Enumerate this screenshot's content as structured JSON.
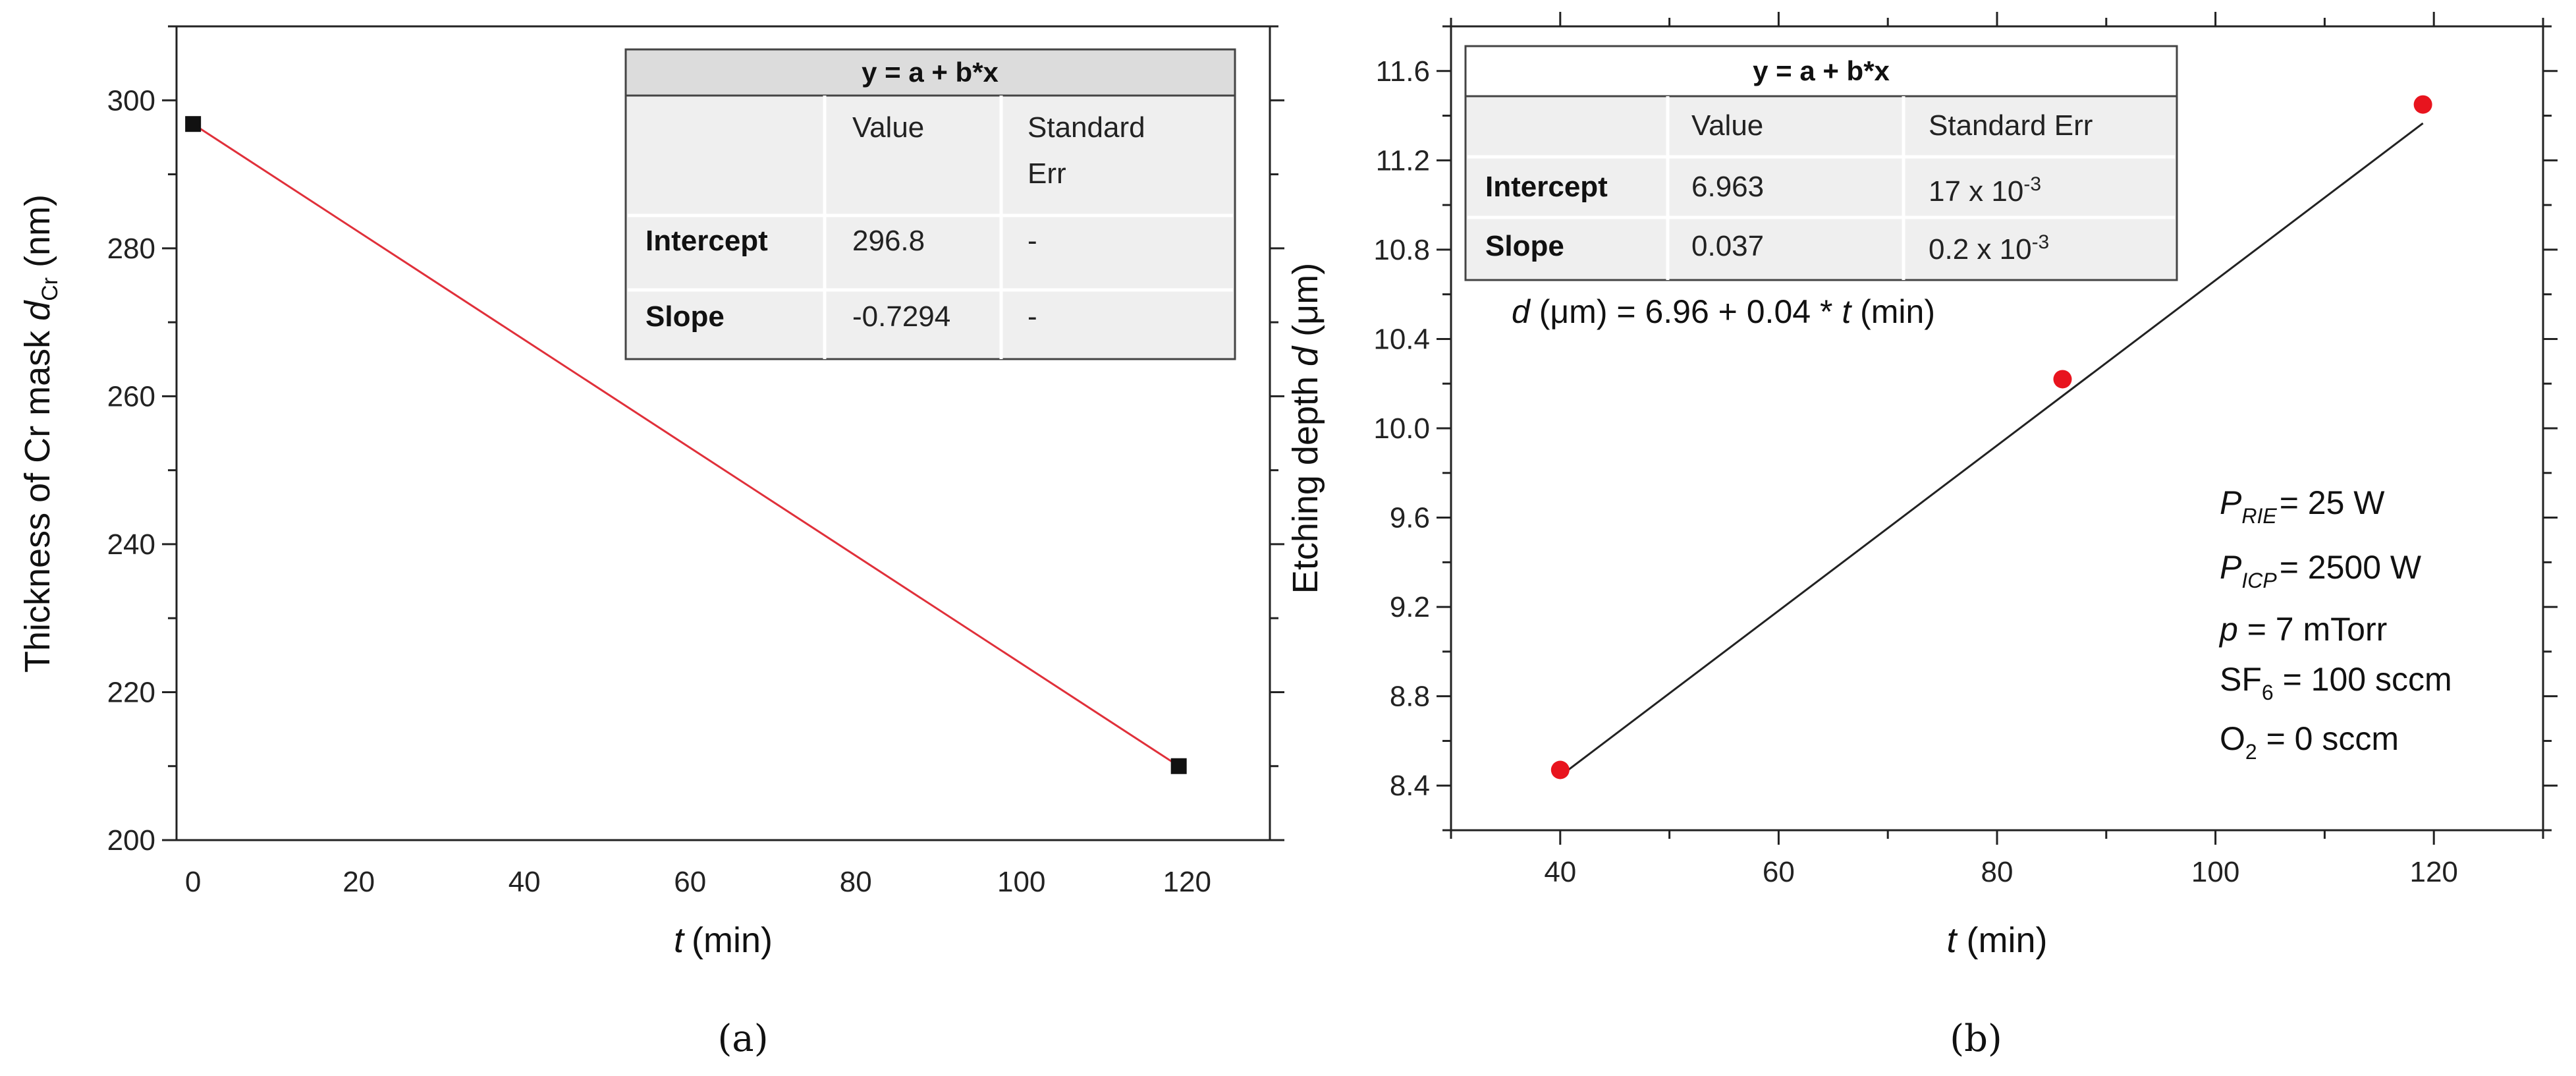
{
  "chart_data": [
    {
      "type": "line",
      "panel_label": "(a)",
      "xlabel_var": "t",
      "xlabel_unit": "(min)",
      "ylabel_main": "Thickness of Cr mask ",
      "ylabel_var": "d",
      "ylabel_sub": "Cr",
      "ylabel_unit": " (nm)",
      "xlim": [
        -2,
        130
      ],
      "ylim": [
        200,
        310
      ],
      "xticks": [
        0,
        20,
        40,
        60,
        80,
        100,
        120
      ],
      "yticks": [
        200,
        220,
        240,
        260,
        280,
        300
      ],
      "series": [
        {
          "name": "Cr mask thickness",
          "x": [
            0,
            119
          ],
          "y": [
            296.8,
            210
          ],
          "marker": "square",
          "marker_color": "#111111"
        }
      ],
      "fit": {
        "intercept": 296.8,
        "slope": -0.7294,
        "color": "#e0303a"
      },
      "table": {
        "title": "y = a + b*x",
        "headers": [
          "",
          "Value",
          "Standard",
          "Err"
        ],
        "rows": [
          {
            "label": "Intercept",
            "value": "296.8",
            "err": "-"
          },
          {
            "label": "Slope",
            "value": "-0.7294",
            "err": "-"
          }
        ]
      }
    },
    {
      "type": "scatter",
      "panel_label": "(b)",
      "xlabel_var": "t",
      "xlabel_unit": " (min)",
      "ylabel_main": "Etching depth ",
      "ylabel_var": "d",
      "ylabel_unit": " (μm)",
      "xlim": [
        30,
        130
      ],
      "ylim": [
        8.2,
        11.8
      ],
      "xticks": [
        40,
        60,
        80,
        100,
        120
      ],
      "yticks": [
        8.4,
        8.8,
        9.2,
        9.6,
        10.0,
        10.4,
        10.8,
        11.2,
        11.6
      ],
      "ytick_labels": [
        "8.4",
        "8.8",
        "9.2",
        "9.6",
        "10.0",
        "10.4",
        "10.8",
        "11.2",
        "11.6"
      ],
      "series": [
        {
          "name": "Etching depth",
          "x": [
            40,
            86,
            119
          ],
          "y": [
            8.47,
            10.22,
            11.45
          ],
          "marker": "circle",
          "marker_color": "#e8141e"
        }
      ],
      "fit": {
        "intercept": 6.963,
        "slope": 0.037,
        "color": "#222222"
      },
      "table": {
        "title": "y = a + b*x",
        "headers": [
          "",
          "Value",
          "Standard Err"
        ],
        "rows": [
          {
            "label": "Intercept",
            "value": "6.963",
            "err_base": "17 x 10",
            "err_exp": "-3"
          },
          {
            "label": "Slope",
            "value": "0.037",
            "err_base": "0.2 x 10",
            "err_exp": "-3"
          }
        ]
      },
      "equation": {
        "var": "d",
        "text": " (μm) = 6.96 + 0.04 * ",
        "tvar": "t",
        "tail": " (min)"
      },
      "conditions": [
        {
          "var": "P",
          "sub": "RIE",
          "rest": "= 25 W"
        },
        {
          "var": "P",
          "sub": "ICP",
          "rest": "= 2500 W"
        },
        {
          "var": "p",
          "sub": "",
          "rest": " = 7 mTorr"
        },
        {
          "var": "SF",
          "sub": "6",
          "rest": " = 100 sccm",
          "plain": true
        },
        {
          "var": "O",
          "sub": "2",
          "rest": " = 0 sccm",
          "plain": true
        }
      ]
    }
  ]
}
